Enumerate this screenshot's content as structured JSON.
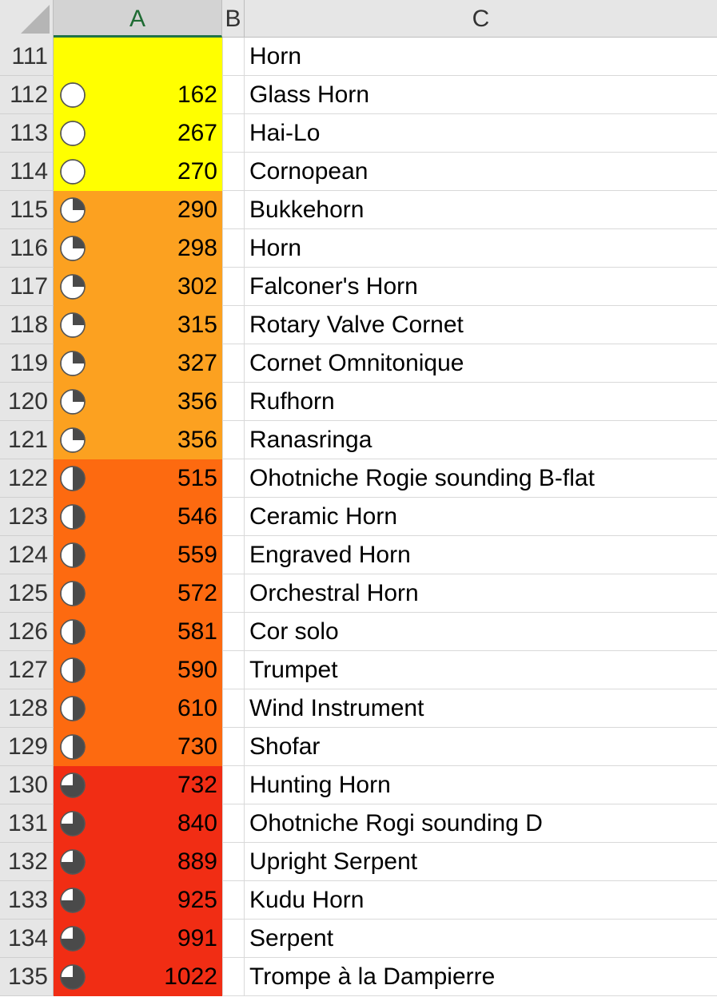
{
  "columns": {
    "a": "A",
    "b": "B",
    "c": "C"
  },
  "colors": {
    "yellow": "#ffff00",
    "light_orange": "#fca120",
    "orange": "#fd6a10",
    "red": "#f12d14",
    "icon_fill": "#4a4a4a"
  },
  "rows": [
    {
      "num": "111",
      "value": "",
      "name": "Horn",
      "band": "yellow",
      "icon": "none"
    },
    {
      "num": "112",
      "value": "162",
      "name": "Glass Horn",
      "band": "yellow",
      "icon": "circle-empty-icon"
    },
    {
      "num": "113",
      "value": "267",
      "name": "Hai-Lo",
      "band": "yellow",
      "icon": "circle-empty-icon"
    },
    {
      "num": "114",
      "value": "270",
      "name": "Cornopean",
      "band": "yellow",
      "icon": "circle-empty-icon"
    },
    {
      "num": "115",
      "value": "290",
      "name": "Bukkehorn",
      "band": "light_orange",
      "icon": "circle-quarter-icon"
    },
    {
      "num": "116",
      "value": "298",
      "name": "Horn",
      "band": "light_orange",
      "icon": "circle-quarter-icon"
    },
    {
      "num": "117",
      "value": "302",
      "name": "Falconer's Horn",
      "band": "light_orange",
      "icon": "circle-quarter-icon"
    },
    {
      "num": "118",
      "value": "315",
      "name": "Rotary Valve Cornet",
      "band": "light_orange",
      "icon": "circle-quarter-icon"
    },
    {
      "num": "119",
      "value": "327",
      "name": "Cornet Omnitonique",
      "band": "light_orange",
      "icon": "circle-quarter-icon"
    },
    {
      "num": "120",
      "value": "356",
      "name": "Rufhorn",
      "band": "light_orange",
      "icon": "circle-quarter-icon"
    },
    {
      "num": "121",
      "value": "356",
      "name": "Ranasringa",
      "band": "light_orange",
      "icon": "circle-quarter-icon"
    },
    {
      "num": "122",
      "value": "515",
      "name": "Ohotniche Rogie sounding B-flat",
      "band": "orange",
      "icon": "circle-half-icon"
    },
    {
      "num": "123",
      "value": "546",
      "name": "Ceramic Horn",
      "band": "orange",
      "icon": "circle-half-icon"
    },
    {
      "num": "124",
      "value": "559",
      "name": "Engraved Horn",
      "band": "orange",
      "icon": "circle-half-icon"
    },
    {
      "num": "125",
      "value": "572",
      "name": "Orchestral Horn",
      "band": "orange",
      "icon": "circle-half-icon"
    },
    {
      "num": "126",
      "value": "581",
      "name": "Cor solo",
      "band": "orange",
      "icon": "circle-half-icon"
    },
    {
      "num": "127",
      "value": "590",
      "name": "Trumpet",
      "band": "orange",
      "icon": "circle-half-icon"
    },
    {
      "num": "128",
      "value": "610",
      "name": "Wind Instrument",
      "band": "orange",
      "icon": "circle-half-icon"
    },
    {
      "num": "129",
      "value": "730",
      "name": "Shofar",
      "band": "orange",
      "icon": "circle-half-icon"
    },
    {
      "num": "130",
      "value": "732",
      "name": "Hunting Horn",
      "band": "red",
      "icon": "circle-three-quarter-icon"
    },
    {
      "num": "131",
      "value": "840",
      "name": "Ohotniche Rogi sounding D",
      "band": "red",
      "icon": "circle-three-quarter-icon"
    },
    {
      "num": "132",
      "value": "889",
      "name": "Upright Serpent",
      "band": "red",
      "icon": "circle-three-quarter-icon"
    },
    {
      "num": "133",
      "value": "925",
      "name": "Kudu Horn",
      "band": "red",
      "icon": "circle-three-quarter-icon"
    },
    {
      "num": "134",
      "value": "991",
      "name": "Serpent",
      "band": "red",
      "icon": "circle-three-quarter-icon"
    },
    {
      "num": "135",
      "value": "1022",
      "name": "Trompe à la Dampierre",
      "band": "red",
      "icon": "circle-three-quarter-icon"
    }
  ]
}
